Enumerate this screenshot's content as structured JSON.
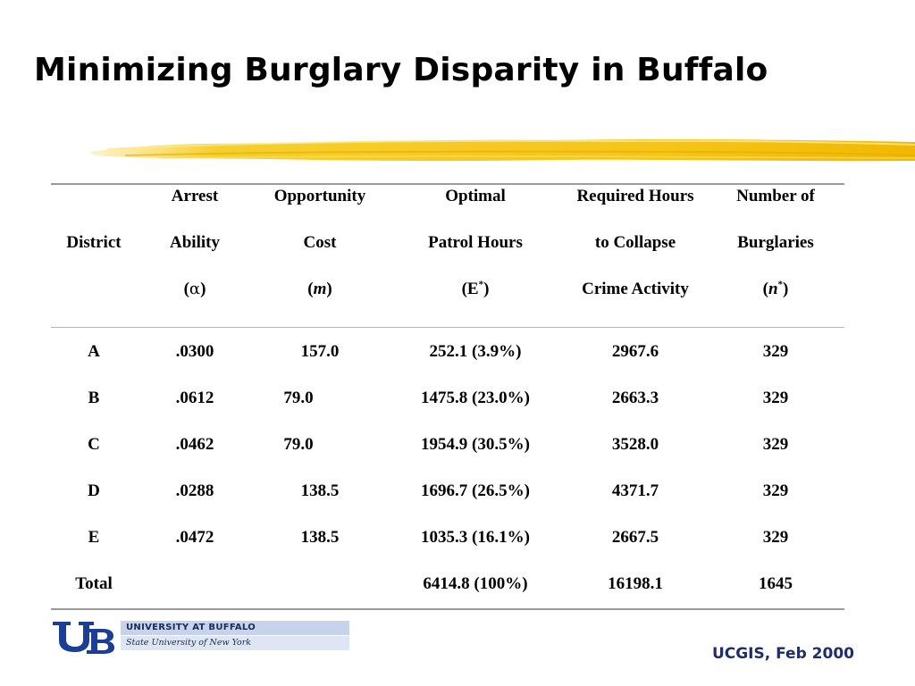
{
  "slide": {
    "title": "Minimizing Burglary Disparity in Buffalo",
    "footer": "UCGIS, Feb 2000",
    "accent_color": "#f5c518",
    "footer_color": "#1f2d6b"
  },
  "table": {
    "headers": [
      {
        "lines": [
          "",
          "District",
          ""
        ]
      },
      {
        "lines": [
          "Arrest",
          "Ability",
          "(",
          "α",
          ")"
        ]
      },
      {
        "lines": [
          "Opportunity",
          "Cost",
          "(",
          "m",
          ")"
        ]
      },
      {
        "lines": [
          "Optimal",
          "Patrol Hours",
          "(E",
          "*",
          ")"
        ]
      },
      {
        "lines": [
          "Required Hours",
          "to Collapse",
          "Crime Activity"
        ]
      },
      {
        "lines": [
          "Number of",
          "Burglaries",
          "(",
          "n",
          "*",
          ")"
        ]
      }
    ],
    "rows": [
      {
        "district": "A",
        "alpha": ".0300",
        "cost": "157.0",
        "hours": "252.1 (3.9%)",
        "required": "2967.6",
        "burglaries": "329"
      },
      {
        "district": "B",
        "alpha": ".0612",
        "cost": "79.0",
        "hours": "1475.8 (23.0%)",
        "required": "2663.3",
        "burglaries": "329"
      },
      {
        "district": "C",
        "alpha": ".0462",
        "cost": "79.0",
        "hours": "1954.9 (30.5%)",
        "required": "3528.0",
        "burglaries": "329"
      },
      {
        "district": "D",
        "alpha": ".0288",
        "cost": "138.5",
        "hours": "1696.7 (26.5%)",
        "required": "4371.7",
        "burglaries": "329"
      },
      {
        "district": "E",
        "alpha": ".0472",
        "cost": "138.5",
        "hours": "1035.3 (16.1%)",
        "required": "2667.5",
        "burglaries": "329"
      },
      {
        "district": "Total",
        "alpha": "",
        "cost": "",
        "hours": "6414.8 (100%)",
        "required": "16198.1",
        "burglaries": "1645"
      }
    ]
  },
  "logo": {
    "line1": "UNIVERSITY AT BUFFALO",
    "line2": "State University of New York",
    "icon": "ub-monogram-logo"
  }
}
